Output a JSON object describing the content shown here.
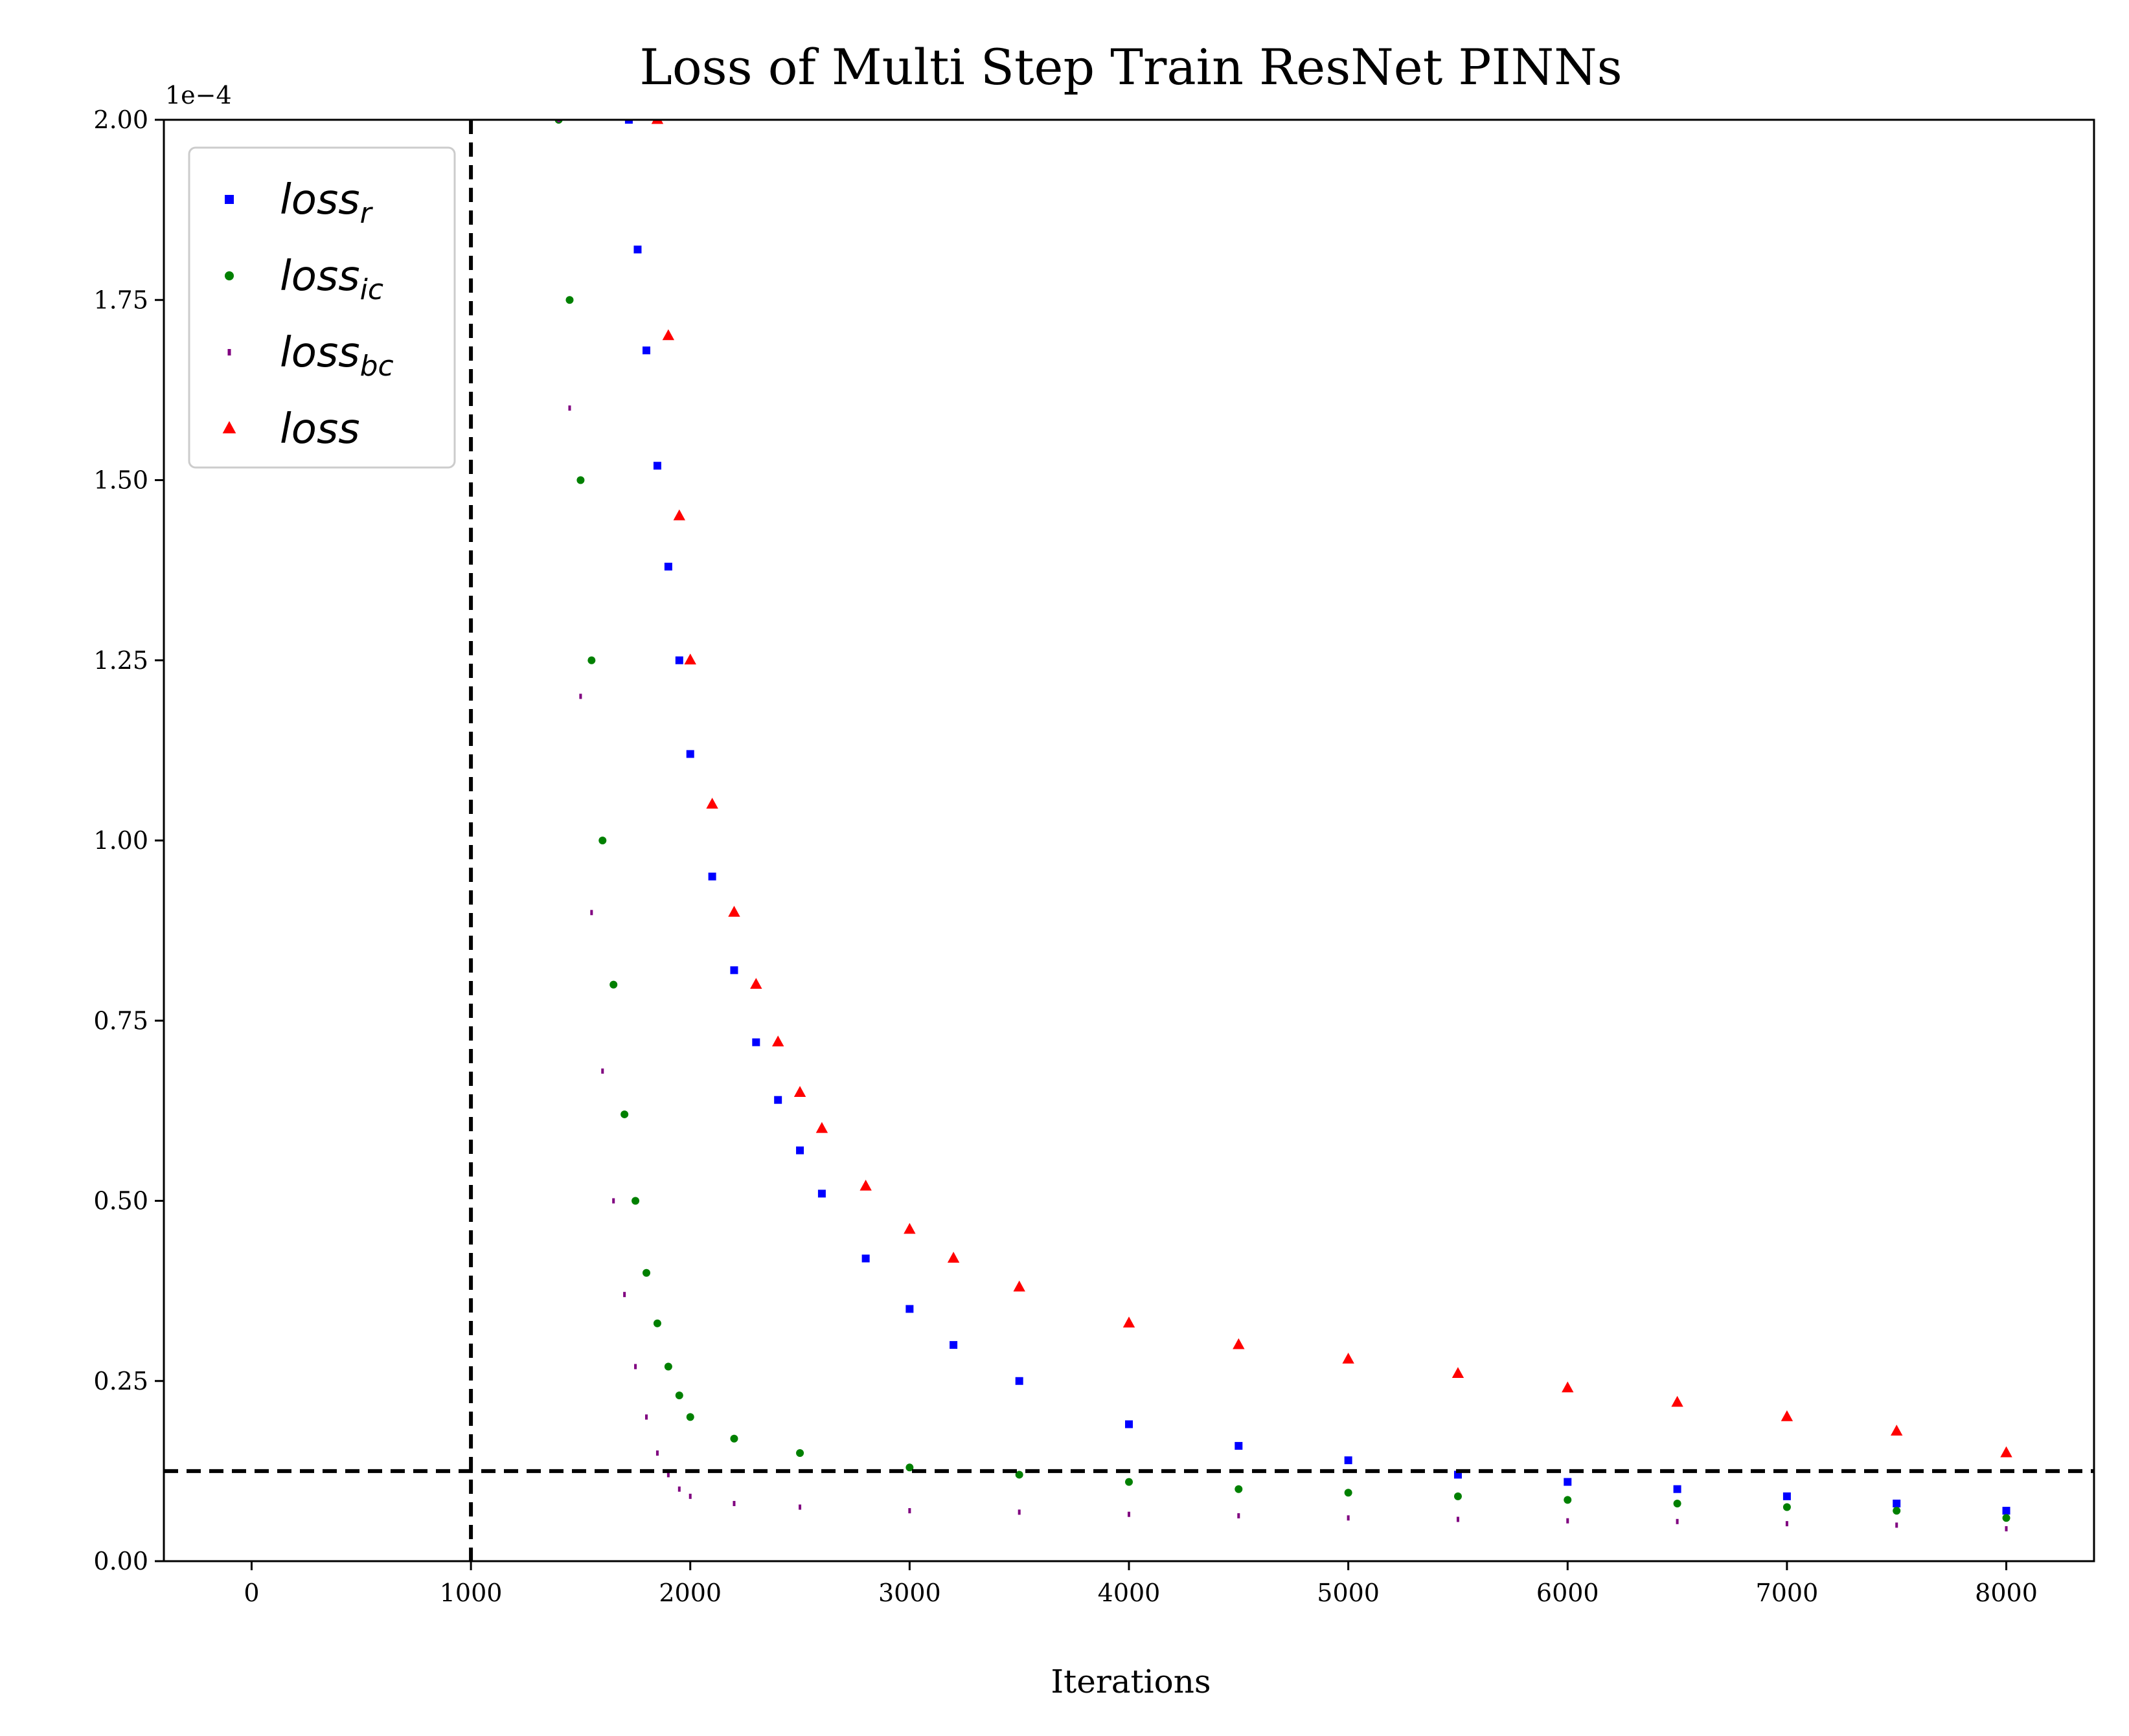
{
  "chart_data": {
    "type": "scatter",
    "title": "Loss of Multi Step Train ResNet PINNs",
    "xlabel": "Iterations",
    "ylabel": "",
    "y_scale_label": "1e−4",
    "xlim": [
      -400,
      8400
    ],
    "ylim": [
      0,
      2.0
    ],
    "x_ticks": [
      0,
      1000,
      2000,
      3000,
      4000,
      5000,
      6000,
      7000,
      8000
    ],
    "x_tick_labels": [
      "0",
      "1000",
      "2000",
      "3000",
      "4000",
      "5000",
      "6000",
      "7000",
      "8000"
    ],
    "y_ticks": [
      0,
      0.25,
      0.5,
      0.75,
      1.0,
      1.25,
      1.5,
      1.75,
      2.0
    ],
    "y_tick_labels": [
      "0.00",
      "0.25",
      "0.50",
      "0.75",
      "1.00",
      "1.25",
      "1.50",
      "1.75",
      "2.00"
    ],
    "grid": false,
    "legend_position": "top-left",
    "reference_lines": [
      {
        "orientation": "vertical",
        "x": 1000,
        "style": "dashed",
        "color": "#000000"
      },
      {
        "orientation": "horizontal",
        "y": 0.125,
        "style": "dashed",
        "color": "#000000"
      }
    ],
    "series": [
      {
        "name_main": "loss",
        "name_sub": "r",
        "marker": "square",
        "color": "#0000ff",
        "x": [
          1720,
          1760,
          1800,
          1850,
          1900,
          1950,
          2000,
          2100,
          2200,
          2300,
          2400,
          2500,
          2600,
          2800,
          3000,
          3200,
          3500,
          4000,
          4500,
          5000,
          5500,
          6000,
          6500,
          7000,
          7500,
          8000
        ],
        "values": [
          2.0,
          1.82,
          1.68,
          1.52,
          1.38,
          1.25,
          1.12,
          0.95,
          0.82,
          0.72,
          0.64,
          0.57,
          0.51,
          0.42,
          0.35,
          0.3,
          0.25,
          0.19,
          0.16,
          0.14,
          0.12,
          0.11,
          0.1,
          0.09,
          0.08,
          0.07
        ]
      },
      {
        "name_main": "loss",
        "name_sub": "ic",
        "marker": "circle",
        "color": "#008000",
        "x": [
          1400,
          1450,
          1500,
          1550,
          1600,
          1650,
          1700,
          1750,
          1800,
          1850,
          1900,
          1950,
          2000,
          2200,
          2500,
          3000,
          3500,
          4000,
          4500,
          5000,
          5500,
          6000,
          6500,
          7000,
          7500,
          8000
        ],
        "values": [
          2.0,
          1.75,
          1.5,
          1.25,
          1.0,
          0.8,
          0.62,
          0.5,
          0.4,
          0.33,
          0.27,
          0.23,
          0.2,
          0.17,
          0.15,
          0.13,
          0.12,
          0.11,
          0.1,
          0.095,
          0.09,
          0.085,
          0.08,
          0.075,
          0.07,
          0.06
        ]
      },
      {
        "name_main": "loss",
        "name_sub": "bc",
        "marker": "point",
        "color": "#800080",
        "x": [
          1400,
          1450,
          1500,
          1550,
          1600,
          1650,
          1700,
          1750,
          1800,
          1850,
          1900,
          1950,
          2000,
          2200,
          2500,
          3000,
          3500,
          4000,
          4500,
          5000,
          5500,
          6000,
          6500,
          7000,
          7500,
          8000
        ],
        "values": [
          2.0,
          1.6,
          1.2,
          0.9,
          0.68,
          0.5,
          0.37,
          0.27,
          0.2,
          0.15,
          0.12,
          0.1,
          0.09,
          0.08,
          0.075,
          0.07,
          0.068,
          0.065,
          0.063,
          0.06,
          0.058,
          0.056,
          0.055,
          0.052,
          0.05,
          0.045
        ]
      },
      {
        "name_main": "loss",
        "name_sub": "",
        "marker": "triangle",
        "color": "#ff0000",
        "x": [
          1850,
          1900,
          1950,
          2000,
          2100,
          2200,
          2300,
          2400,
          2500,
          2600,
          2800,
          3000,
          3200,
          3500,
          4000,
          4500,
          5000,
          5500,
          6000,
          6500,
          7000,
          7500,
          8000
        ],
        "values": [
          2.0,
          1.7,
          1.45,
          1.25,
          1.05,
          0.9,
          0.8,
          0.72,
          0.65,
          0.6,
          0.52,
          0.46,
          0.42,
          0.38,
          0.33,
          0.3,
          0.28,
          0.26,
          0.24,
          0.22,
          0.2,
          0.18,
          0.15
        ]
      }
    ]
  }
}
